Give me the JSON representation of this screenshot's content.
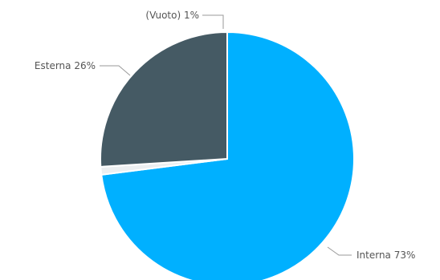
{
  "chart_data": {
    "type": "pie",
    "title": "",
    "slices": [
      {
        "label": "Interna",
        "value": 73,
        "display": "Interna 73%",
        "color": "#00B0FF"
      },
      {
        "label": "(Vuoto)",
        "value": 1,
        "display": "(Vuoto) 1%",
        "color": "#ECEFF1"
      },
      {
        "label": "Esterna",
        "value": 26,
        "display": "Esterna 26%",
        "color": "#455A64"
      }
    ],
    "legend": "none",
    "labels_position": "outside"
  }
}
